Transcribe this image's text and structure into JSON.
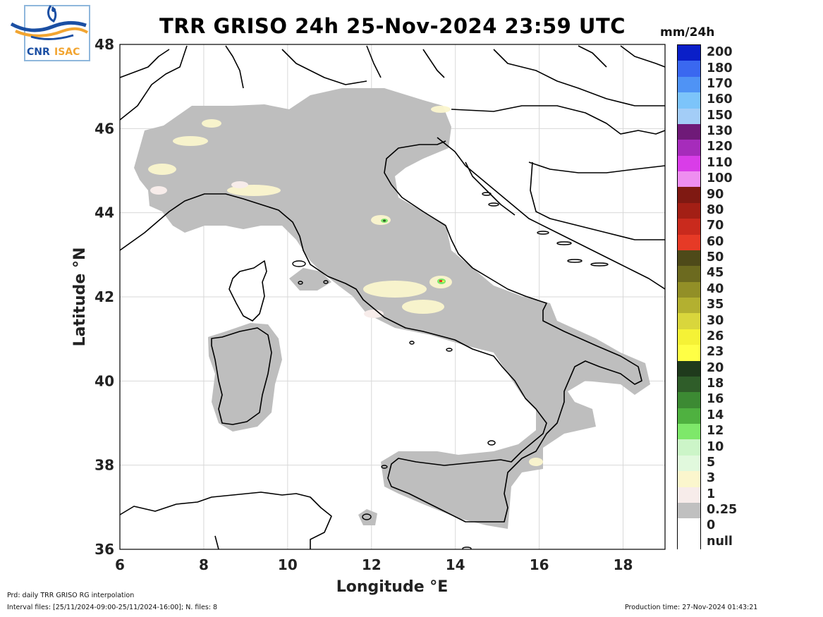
{
  "title": "TRR GRISO 24h 25-Nov-2024 23:59 UTC",
  "units": "mm/24h",
  "logo": {
    "text_cnr": "CNR",
    "text_isac": "ISAC"
  },
  "map": {
    "xlabel": "Longitude °E",
    "ylabel": "Latitude °N",
    "lon_range": [
      6,
      19
    ],
    "lat_range": [
      36,
      48
    ],
    "lon_ticks": [
      "6",
      "8",
      "10",
      "12",
      "14",
      "16",
      "18"
    ],
    "lat_ticks": [
      "36",
      "38",
      "40",
      "42",
      "44",
      "46",
      "48"
    ],
    "grid": true,
    "land_fill_color": "#bebebe",
    "background_color": "#ffffff"
  },
  "legend": {
    "classes": [
      {
        "label": "200",
        "color": "#0a1fc8"
      },
      {
        "label": "180",
        "color": "#3a68f0"
      },
      {
        "label": "170",
        "color": "#4f93f5"
      },
      {
        "label": "160",
        "color": "#7cc4fa"
      },
      {
        "label": "150",
        "color": "#a3cdf7"
      },
      {
        "label": "130",
        "color": "#6f1a78"
      },
      {
        "label": "120",
        "color": "#a62cbb"
      },
      {
        "label": "110",
        "color": "#d93de8"
      },
      {
        "label": "100",
        "color": "#ee8ef0"
      },
      {
        "label": "90",
        "color": "#7f1912"
      },
      {
        "label": "80",
        "color": "#a31f15"
      },
      {
        "label": "70",
        "color": "#c92a1d"
      },
      {
        "label": "60",
        "color": "#e63a26"
      },
      {
        "label": "50",
        "color": "#4e4a19"
      },
      {
        "label": "45",
        "color": "#6c6a1f"
      },
      {
        "label": "40",
        "color": "#928f27"
      },
      {
        "label": "35",
        "color": "#b3b030"
      },
      {
        "label": "30",
        "color": "#d9d63c"
      },
      {
        "label": "26",
        "color": "#f5f236"
      },
      {
        "label": "23",
        "color": "#ffff45"
      },
      {
        "label": "20",
        "color": "#1f3a1c"
      },
      {
        "label": "18",
        "color": "#2f5d29"
      },
      {
        "label": "16",
        "color": "#3c8a33"
      },
      {
        "label": "14",
        "color": "#4fb140"
      },
      {
        "label": "12",
        "color": "#7ee86a"
      },
      {
        "label": "10",
        "color": "#ccf5c8"
      },
      {
        "label": "5",
        "color": "#e1f9dd"
      },
      {
        "label": "3",
        "color": "#fbf6cd"
      },
      {
        "label": "1",
        "color": "#f7ecea"
      },
      {
        "label": "0.25",
        "color": "#c0c0c0"
      },
      {
        "label": "0",
        "color": "#ffffff"
      },
      {
        "label": "null",
        "color": null
      }
    ]
  },
  "footer": {
    "product": "Prd: daily TRR GRISO RG interpolation",
    "interval": "Interval files: [25/11/2024-09:00-25/11/2024-16:00]; N. files: 8",
    "production_time": "Production time: 27-Nov-2024 01:43:21"
  }
}
